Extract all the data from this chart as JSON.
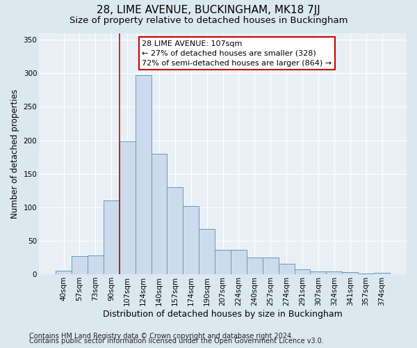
{
  "title1": "28, LIME AVENUE, BUCKINGHAM, MK18 7JJ",
  "title2": "Size of property relative to detached houses in Buckingham",
  "xlabel": "Distribution of detached houses by size in Buckingham",
  "ylabel": "Number of detached properties",
  "footer1": "Contains HM Land Registry data © Crown copyright and database right 2024.",
  "footer2": "Contains public sector information licensed under the Open Government Licence v3.0.",
  "categories": [
    "40sqm",
    "57sqm",
    "73sqm",
    "90sqm",
    "107sqm",
    "124sqm",
    "140sqm",
    "157sqm",
    "174sqm",
    "190sqm",
    "207sqm",
    "224sqm",
    "240sqm",
    "257sqm",
    "274sqm",
    "291sqm",
    "307sqm",
    "324sqm",
    "341sqm",
    "357sqm",
    "374sqm"
  ],
  "values": [
    5,
    27,
    28,
    110,
    198,
    297,
    180,
    130,
    102,
    68,
    36,
    36,
    25,
    25,
    16,
    7,
    4,
    4,
    3,
    1,
    2
  ],
  "bar_color": "#ccdcec",
  "bar_edge_color": "#6699bb",
  "vline_x_index": 4,
  "vline_color": "#cc0000",
  "annotation_text": "28 LIME AVENUE: 107sqm\n← 27% of detached houses are smaller (328)\n72% of semi-detached houses are larger (864) →",
  "annotation_box_color": "#ffffff",
  "annotation_box_edge_color": "#cc0000",
  "ylim": [
    0,
    360
  ],
  "yticks": [
    0,
    50,
    100,
    150,
    200,
    250,
    300,
    350
  ],
  "bg_color": "#dce8f0",
  "plot_bg_color": "#e8f0f6",
  "title1_fontsize": 11,
  "title2_fontsize": 9.5,
  "xlabel_fontsize": 9,
  "ylabel_fontsize": 8.5,
  "tick_fontsize": 7.5,
  "footer_fontsize": 7,
  "annot_fontsize": 8
}
